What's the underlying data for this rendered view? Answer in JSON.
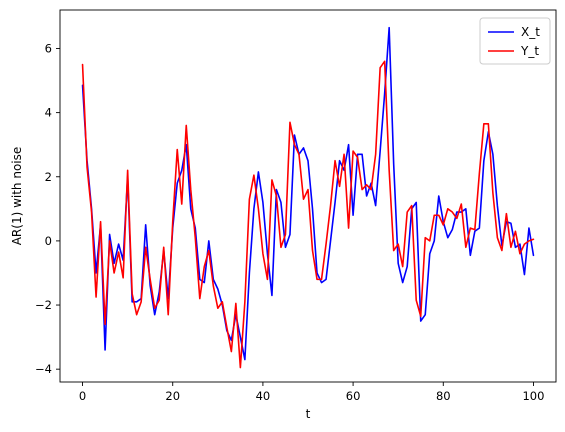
{
  "chart_data": {
    "type": "line",
    "xlabel": "t",
    "ylabel": "AR(1) with noise",
    "xlim": [
      -5,
      105
    ],
    "ylim": [
      -4.4,
      7.2
    ],
    "xticks": [
      0,
      20,
      40,
      60,
      80,
      100
    ],
    "yticks": [
      -4,
      -2,
      0,
      2,
      4,
      6
    ],
    "grid": false,
    "legend_position": "top-right",
    "x": [
      0,
      1,
      2,
      3,
      4,
      5,
      6,
      7,
      8,
      9,
      10,
      11,
      12,
      13,
      14,
      15,
      16,
      17,
      18,
      19,
      20,
      21,
      22,
      23,
      24,
      25,
      26,
      27,
      28,
      29,
      30,
      31,
      32,
      33,
      34,
      35,
      36,
      37,
      38,
      39,
      40,
      41,
      42,
      43,
      44,
      45,
      46,
      47,
      48,
      49,
      50,
      51,
      52,
      53,
      54,
      55,
      56,
      57,
      58,
      59,
      60,
      61,
      62,
      63,
      64,
      65,
      66,
      67,
      68,
      69,
      70,
      71,
      72,
      73,
      74,
      75,
      76,
      77,
      78,
      79,
      80,
      81,
      82,
      83,
      84,
      85,
      86,
      87,
      88,
      89,
      90,
      91,
      92,
      93,
      94,
      95,
      96,
      97,
      98,
      99,
      100
    ],
    "series": [
      {
        "name": "X_t",
        "color": "#0000ff",
        "values": [
          4.85,
          2.5,
          1.0,
          -1.0,
          0.5,
          -3.4,
          0.2,
          -0.7,
          -0.1,
          -0.6,
          2.0,
          -1.9,
          -1.9,
          -1.8,
          0.5,
          -1.4,
          -2.3,
          -1.6,
          -0.3,
          -1.8,
          0.4,
          1.8,
          2.2,
          3.0,
          1.0,
          0.4,
          -1.2,
          -1.3,
          0.0,
          -1.2,
          -1.5,
          -2.0,
          -2.8,
          -3.1,
          -2.3,
          -3.0,
          -3.7,
          -1.0,
          1.0,
          2.15,
          1.2,
          -0.4,
          -1.7,
          1.6,
          1.2,
          -0.2,
          0.2,
          3.3,
          2.7,
          2.9,
          2.5,
          1.0,
          -1.0,
          -1.3,
          -1.2,
          0.0,
          1.2,
          2.5,
          2.2,
          3.0,
          0.8,
          2.7,
          2.7,
          1.4,
          1.8,
          1.1,
          2.8,
          4.6,
          6.65,
          2.4,
          -0.7,
          -1.3,
          -0.8,
          1.0,
          1.2,
          -2.5,
          -2.3,
          -0.4,
          0.0,
          1.4,
          0.6,
          0.1,
          0.35,
          0.9,
          0.9,
          1.0,
          -0.45,
          0.3,
          0.4,
          2.5,
          3.4,
          2.7,
          1.1,
          -0.15,
          0.6,
          0.55,
          -0.2,
          -0.1,
          -1.05,
          0.4,
          -0.45
        ]
      },
      {
        "name": "Y_t",
        "color": "#ff0000",
        "values": [
          5.5,
          2.3,
          0.9,
          -1.75,
          0.6,
          -2.6,
          0.0,
          -1.0,
          -0.35,
          -1.15,
          2.2,
          -1.65,
          -2.3,
          -1.9,
          -0.2,
          -1.2,
          -2.1,
          -1.85,
          -0.2,
          -2.3,
          0.6,
          2.85,
          1.15,
          3.6,
          1.6,
          0.1,
          -1.8,
          -0.8,
          -0.3,
          -1.4,
          -2.1,
          -1.9,
          -2.7,
          -3.45,
          -1.95,
          -3.95,
          -1.9,
          1.3,
          2.05,
          1.0,
          -0.4,
          -1.2,
          1.9,
          1.4,
          -0.2,
          0.2,
          3.7,
          3.0,
          2.7,
          1.3,
          1.6,
          -0.3,
          -1.2,
          -1.2,
          -0.1,
          1.1,
          2.5,
          1.7,
          2.7,
          0.4,
          2.8,
          2.6,
          1.6,
          1.75,
          1.6,
          2.7,
          5.4,
          5.6,
          2.2,
          -0.3,
          -0.1,
          -0.8,
          0.9,
          1.1,
          -1.85,
          -2.35,
          0.1,
          0.0,
          0.8,
          0.8,
          0.5,
          1.0,
          0.9,
          0.7,
          1.15,
          -0.2,
          0.4,
          0.35,
          2.1,
          3.65,
          3.65,
          1.5,
          0.1,
          -0.3,
          0.85,
          -0.2,
          0.3,
          -0.4,
          -0.1,
          0.0,
          0.05
        ]
      }
    ]
  }
}
